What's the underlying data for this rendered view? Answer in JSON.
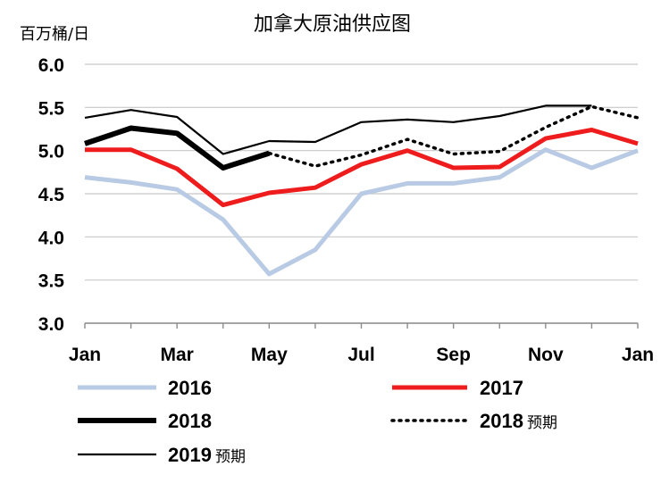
{
  "chart_data": {
    "type": "line",
    "title": "加拿大原油供应图",
    "ylabel": "百万桶/日",
    "xlabel": "",
    "ylim": [
      3.0,
      6.0
    ],
    "yticks": [
      "6.0",
      "5.5",
      "5.0",
      "4.5",
      "4.0",
      "3.5",
      "3.0"
    ],
    "ytick_values": [
      6.0,
      5.5,
      5.0,
      4.5,
      4.0,
      3.5,
      3.0
    ],
    "categories": [
      "Jan",
      "Feb",
      "Mar",
      "Apr",
      "May",
      "Jun",
      "Jul",
      "Aug",
      "Sep",
      "Oct",
      "Nov",
      "Dec",
      "Jan"
    ],
    "xtick_labels": [
      "Jan",
      "Mar",
      "May",
      "Jul",
      "Sep",
      "Nov",
      "Jan"
    ],
    "xtick_indices": [
      0,
      2,
      4,
      6,
      8,
      10,
      12
    ],
    "grid": true,
    "series": [
      {
        "name": "2016",
        "color": "#b9cbe4",
        "style": "solid-thick",
        "values": [
          4.69,
          4.63,
          4.55,
          4.2,
          3.57,
          3.85,
          4.5,
          4.62,
          4.62,
          4.69,
          5.01,
          4.8,
          5.0
        ]
      },
      {
        "name": "2017",
        "color": "#ee1c1c",
        "style": "solid-thick",
        "values": [
          5.01,
          5.01,
          4.79,
          4.37,
          4.51,
          4.57,
          4.84,
          5.0,
          4.8,
          4.81,
          5.14,
          5.24,
          5.08
        ]
      },
      {
        "name": "2018",
        "color": "#000000",
        "style": "solid-heavy",
        "values": [
          5.08,
          5.26,
          5.2,
          4.8,
          4.97,
          null,
          null,
          null,
          null,
          null,
          null,
          null,
          null
        ]
      },
      {
        "name": "2018",
        "suffix": "预期",
        "color": "#000000",
        "style": "dotted",
        "values": [
          null,
          null,
          null,
          null,
          4.97,
          4.82,
          4.95,
          5.13,
          4.96,
          4.99,
          5.27,
          5.51,
          5.38
        ]
      },
      {
        "name": "2019",
        "suffix": "预期",
        "color": "#000000",
        "style": "solid-thin",
        "values": [
          5.38,
          5.47,
          5.39,
          4.96,
          5.11,
          5.1,
          5.33,
          5.36,
          5.33,
          5.4,
          5.52,
          5.52,
          null
        ]
      }
    ]
  }
}
